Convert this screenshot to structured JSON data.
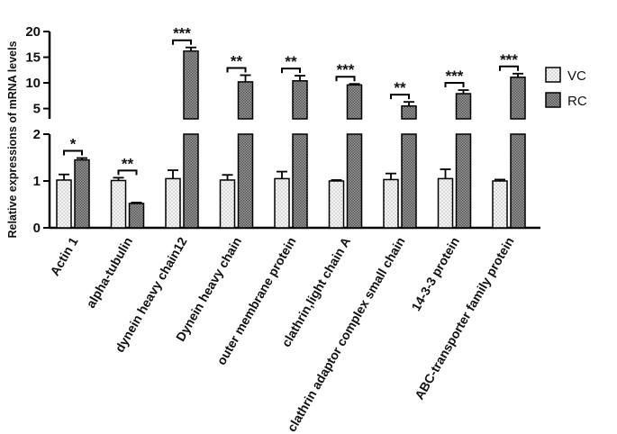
{
  "chart_data": {
    "type": "bar",
    "ylabel": "Relative expressions of mRNA levels",
    "categories": [
      "Actin 1",
      "alpha-tubulin",
      "dynein  heavy chain12",
      "Dynein heavy chain",
      "outer membrane protein",
      "clathrin,light chain A",
      "clathrin adaptor complex small chain",
      "14-3-3 protein",
      "ABC-transporter family protein"
    ],
    "series": [
      {
        "name": "VC",
        "values": [
          1.02,
          1.01,
          1.05,
          1.02,
          1.05,
          1.0,
          1.03,
          1.05,
          1.0
        ],
        "errors": [
          0.12,
          0.06,
          0.18,
          0.11,
          0.15,
          0.02,
          0.13,
          0.2,
          0.03
        ]
      },
      {
        "name": "RC",
        "values": [
          1.45,
          0.52,
          16.2,
          10.2,
          10.4,
          9.6,
          5.5,
          7.9,
          11.1
        ],
        "errors": [
          0.04,
          0.02,
          0.7,
          1.3,
          1.0,
          0.2,
          0.8,
          0.7,
          0.7
        ]
      }
    ],
    "significance": [
      "*",
      "**",
      "***",
      "**",
      "**",
      "***",
      "**",
      "***",
      "***"
    ],
    "y_axis": {
      "broken": true,
      "lower_segment": {
        "range": [
          0,
          2
        ],
        "ticks": [
          "0",
          "1",
          "2"
        ]
      },
      "upper_segment": {
        "range": [
          3,
          20
        ],
        "ticks": [
          "5",
          "10",
          "15",
          "20"
        ]
      }
    },
    "legend": {
      "position": "right",
      "labels": [
        "VC",
        "RC"
      ]
    },
    "colors": {
      "VC": "#f2f2f2",
      "RC": "#8c8c8c",
      "axis": "#000000"
    }
  }
}
